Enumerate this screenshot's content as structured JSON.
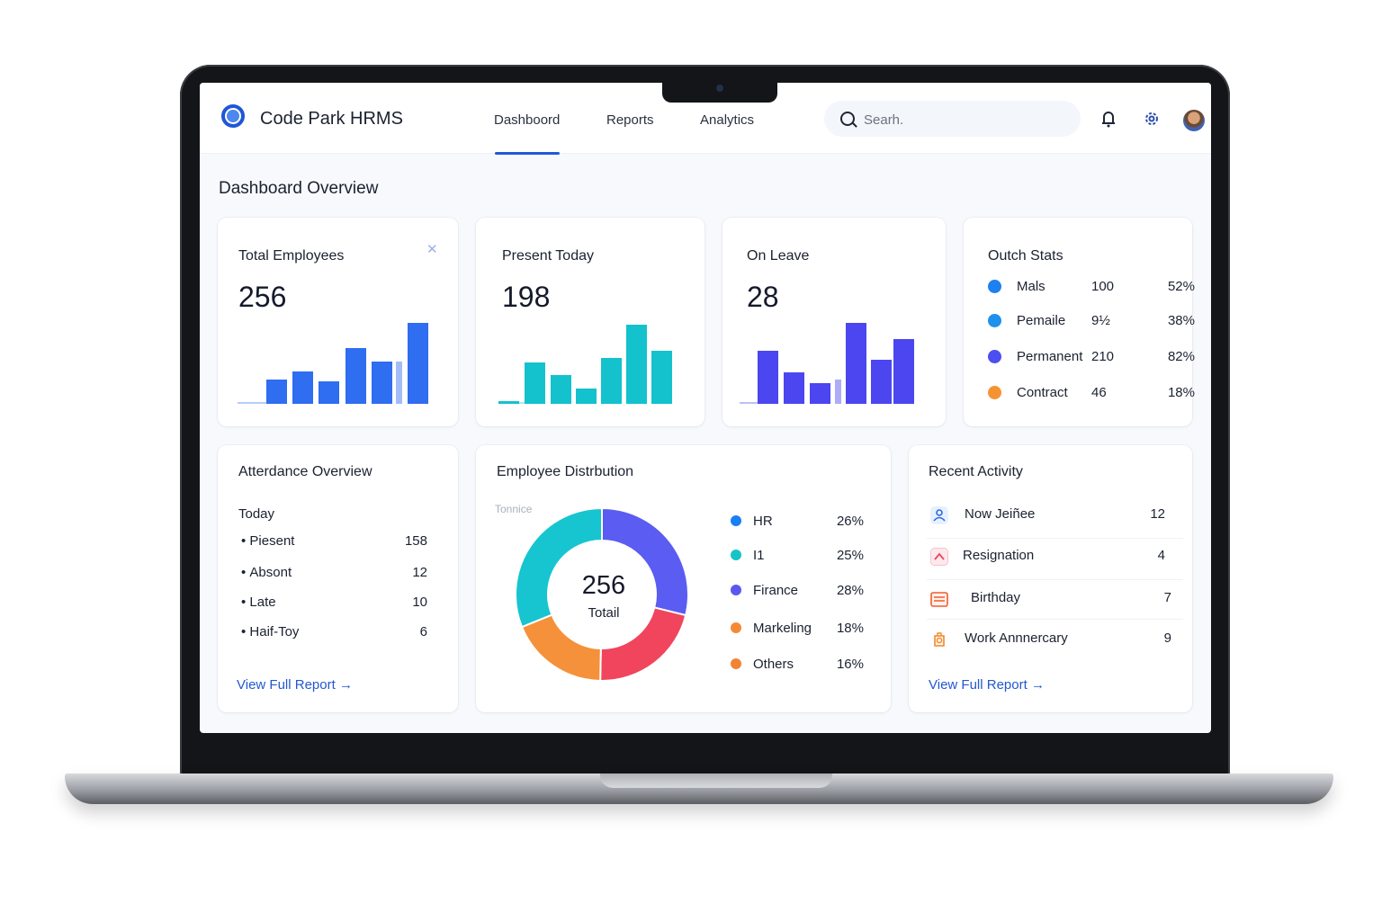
{
  "header": {
    "app_title": "Code Park HRMS",
    "nav": [
      {
        "label": "Dashboord",
        "active": true
      },
      {
        "label": "Reports",
        "active": false
      },
      {
        "label": "Analytics",
        "active": false
      }
    ],
    "search_placeholder": "Searh."
  },
  "page_title": "Dashboard Overview",
  "cards": {
    "total_employees": {
      "title": "Total Employees",
      "value": "256",
      "bars": [
        28,
        38,
        26,
        65,
        50,
        95
      ],
      "faint_bar": 50,
      "color": "#2f6df1"
    },
    "present_today": {
      "title": "Present Today",
      "value": "198",
      "bars": [
        3,
        48,
        34,
        18,
        54,
        93,
        62
      ],
      "color": "#13c2cd"
    },
    "on_leave": {
      "title": "On Leave",
      "value": "28",
      "bars": [
        62,
        37,
        24,
        95,
        52,
        76
      ],
      "faint_bar": 28,
      "color": "#4b46ef"
    }
  },
  "outch_stats": {
    "title": "Outch Stats",
    "rows": [
      {
        "label": "Mals",
        "value": "100",
        "pct": "52%",
        "color": "#1e80f0"
      },
      {
        "label": "Pemaile",
        "value": "9½",
        "pct": "38%",
        "color": "#1e90ee"
      },
      {
        "label": "Permanent",
        "value": "210",
        "pct": "82%",
        "color": "#4d4ef0"
      },
      {
        "label": "Contract",
        "value": "46",
        "pct": "18%",
        "color": "#f59333"
      }
    ]
  },
  "attendance": {
    "title": "Atterdance Overview",
    "subtitle": "Today",
    "rows": [
      {
        "label": "Piesent",
        "value": "158"
      },
      {
        "label": "Absont",
        "value": "12"
      },
      {
        "label": "Late",
        "value": "10"
      },
      {
        "label": "Haif-Toy",
        "value": "6"
      }
    ],
    "link": "View Full Report"
  },
  "distribution": {
    "title": "Employee Distrbution",
    "faint_label": "Tonnice",
    "center_value": "256",
    "center_label": "Totail",
    "legend": [
      {
        "label": "HR",
        "pct": "26%",
        "color": "#1a7ff2"
      },
      {
        "label": "I1",
        "pct": "25%",
        "color": "#16c4c8"
      },
      {
        "label": "Firance",
        "pct": "28%",
        "color": "#5a58f0"
      },
      {
        "label": "Markeling",
        "pct": "18%",
        "color": "#f58a35"
      },
      {
        "label": "Others",
        "pct": "16%",
        "color": "#f38333"
      }
    ]
  },
  "chart_data": {
    "type": "pie",
    "categories": [
      "HR",
      "I1",
      "Firance",
      "Markeling",
      "Others"
    ],
    "values": [
      26,
      25,
      28,
      18,
      16
    ],
    "center_label": "Totail",
    "center_value": 256
  },
  "activity": {
    "title": "Recent Activity",
    "rows": [
      {
        "label": "Now Jeiñee",
        "value": "12",
        "icon": "new-joinee-icon",
        "color": "#2f6be0"
      },
      {
        "label": "Resignation",
        "value": "4",
        "icon": "resignation-icon",
        "color": "#e8475f"
      },
      {
        "label": "Birthday",
        "value": "7",
        "icon": "birthday-icon",
        "color": "#ef5b2f"
      },
      {
        "label": "Work Annnercary",
        "value": "9",
        "icon": "work-anniversary-icon",
        "color": "#f08a2a"
      }
    ],
    "link": "View Full Report"
  }
}
